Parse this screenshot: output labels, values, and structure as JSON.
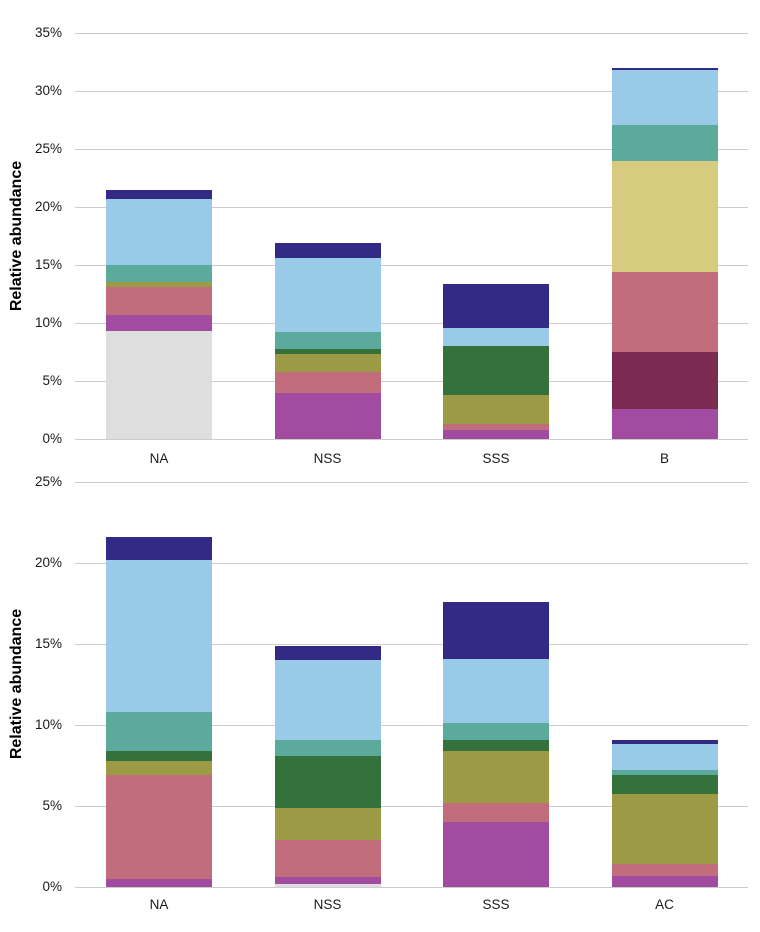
{
  "figure": {
    "background": "#ffffff",
    "grid_color": "#cccccc",
    "text_color": "#1a1a1a"
  },
  "palette": {
    "gray": "#dedede",
    "magenta": "#a14ca0",
    "maroon": "#7b2a52",
    "rose": "#c16d7b",
    "olive": "#9c9a44",
    "khaki": "#d7cb80",
    "darkgreen": "#35713a",
    "teal": "#5baa9b",
    "lightblue": "#99cbe8",
    "navy": "#322a85"
  },
  "chart_data": [
    {
      "type": "bar",
      "stacked": true,
      "title": "",
      "ylabel": "Relative abundance",
      "xlabel": "",
      "ylim": [
        0,
        35
      ],
      "ytick_step": 5,
      "yticks": [
        "0%",
        "5%",
        "10%",
        "15%",
        "20%",
        "25%",
        "30%",
        "35%"
      ],
      "grid": true,
      "legend": false,
      "categories": [
        "NA",
        "NSS",
        "SSS",
        "B"
      ],
      "bars": [
        {
          "category": "NA",
          "total": 21.5,
          "segments": [
            {
              "color": "gray",
              "value": 9.3
            },
            {
              "color": "magenta",
              "value": 1.4
            },
            {
              "color": "rose",
              "value": 2.4
            },
            {
              "color": "olive",
              "value": 0.4
            },
            {
              "color": "teal",
              "value": 1.5
            },
            {
              "color": "lightblue",
              "value": 5.7
            },
            {
              "color": "navy",
              "value": 0.8
            }
          ]
        },
        {
          "category": "NSS",
          "total": 16.9,
          "segments": [
            {
              "color": "magenta",
              "value": 4.0
            },
            {
              "color": "rose",
              "value": 1.8
            },
            {
              "color": "olive",
              "value": 1.5
            },
            {
              "color": "darkgreen",
              "value": 0.5
            },
            {
              "color": "teal",
              "value": 1.4
            },
            {
              "color": "lightblue",
              "value": 6.4
            },
            {
              "color": "navy",
              "value": 1.3
            }
          ]
        },
        {
          "category": "SSS",
          "total": 13.4,
          "segments": [
            {
              "color": "magenta",
              "value": 0.8
            },
            {
              "color": "rose",
              "value": 0.5
            },
            {
              "color": "olive",
              "value": 2.5
            },
            {
              "color": "darkgreen",
              "value": 4.2
            },
            {
              "color": "lightblue",
              "value": 1.6
            },
            {
              "color": "navy",
              "value": 3.8
            }
          ]
        },
        {
          "category": "B",
          "total": 32.0,
          "segments": [
            {
              "color": "magenta",
              "value": 2.6
            },
            {
              "color": "maroon",
              "value": 4.9
            },
            {
              "color": "rose",
              "value": 6.9
            },
            {
              "color": "khaki",
              "value": 9.6
            },
            {
              "color": "teal",
              "value": 3.1
            },
            {
              "color": "lightblue",
              "value": 4.7
            },
            {
              "color": "navy",
              "value": 0.2
            }
          ]
        }
      ]
    },
    {
      "type": "bar",
      "stacked": true,
      "title": "",
      "ylabel": "Relative abundance",
      "xlabel": "",
      "ylim": [
        0,
        25
      ],
      "ytick_step": 5,
      "yticks": [
        "0%",
        "5%",
        "10%",
        "15%",
        "20%",
        "25%"
      ],
      "grid": true,
      "legend": false,
      "categories": [
        "NA",
        "NSS",
        "SSS",
        "AC"
      ],
      "bars": [
        {
          "category": "NA",
          "total": 21.6,
          "segments": [
            {
              "color": "magenta",
              "value": 0.5
            },
            {
              "color": "rose",
              "value": 6.4
            },
            {
              "color": "olive",
              "value": 0.9
            },
            {
              "color": "darkgreen",
              "value": 0.6
            },
            {
              "color": "teal",
              "value": 2.4
            },
            {
              "color": "lightblue",
              "value": 9.4
            },
            {
              "color": "navy",
              "value": 1.4
            }
          ]
        },
        {
          "category": "NSS",
          "total": 14.9,
          "segments": [
            {
              "color": "gray",
              "value": 0.2
            },
            {
              "color": "magenta",
              "value": 0.4
            },
            {
              "color": "rose",
              "value": 2.3
            },
            {
              "color": "olive",
              "value": 2.0
            },
            {
              "color": "darkgreen",
              "value": 3.2
            },
            {
              "color": "teal",
              "value": 1.0
            },
            {
              "color": "lightblue",
              "value": 4.9
            },
            {
              "color": "navy",
              "value": 0.9
            }
          ]
        },
        {
          "category": "SSS",
          "total": 17.6,
          "segments": [
            {
              "color": "magenta",
              "value": 4.0
            },
            {
              "color": "rose",
              "value": 1.2
            },
            {
              "color": "olive",
              "value": 3.2
            },
            {
              "color": "darkgreen",
              "value": 0.7
            },
            {
              "color": "teal",
              "value": 1.0
            },
            {
              "color": "lightblue",
              "value": 4.0
            },
            {
              "color": "navy",
              "value": 3.5
            }
          ]
        },
        {
          "category": "AC",
          "total": 9.1,
          "segments": [
            {
              "color": "magenta",
              "value": 0.65
            },
            {
              "color": "rose",
              "value": 0.75
            },
            {
              "color": "olive",
              "value": 4.35
            },
            {
              "color": "darkgreen",
              "value": 1.15
            },
            {
              "color": "teal",
              "value": 0.35
            },
            {
              "color": "lightblue",
              "value": 1.6
            },
            {
              "color": "navy",
              "value": 0.25
            }
          ]
        }
      ]
    }
  ]
}
